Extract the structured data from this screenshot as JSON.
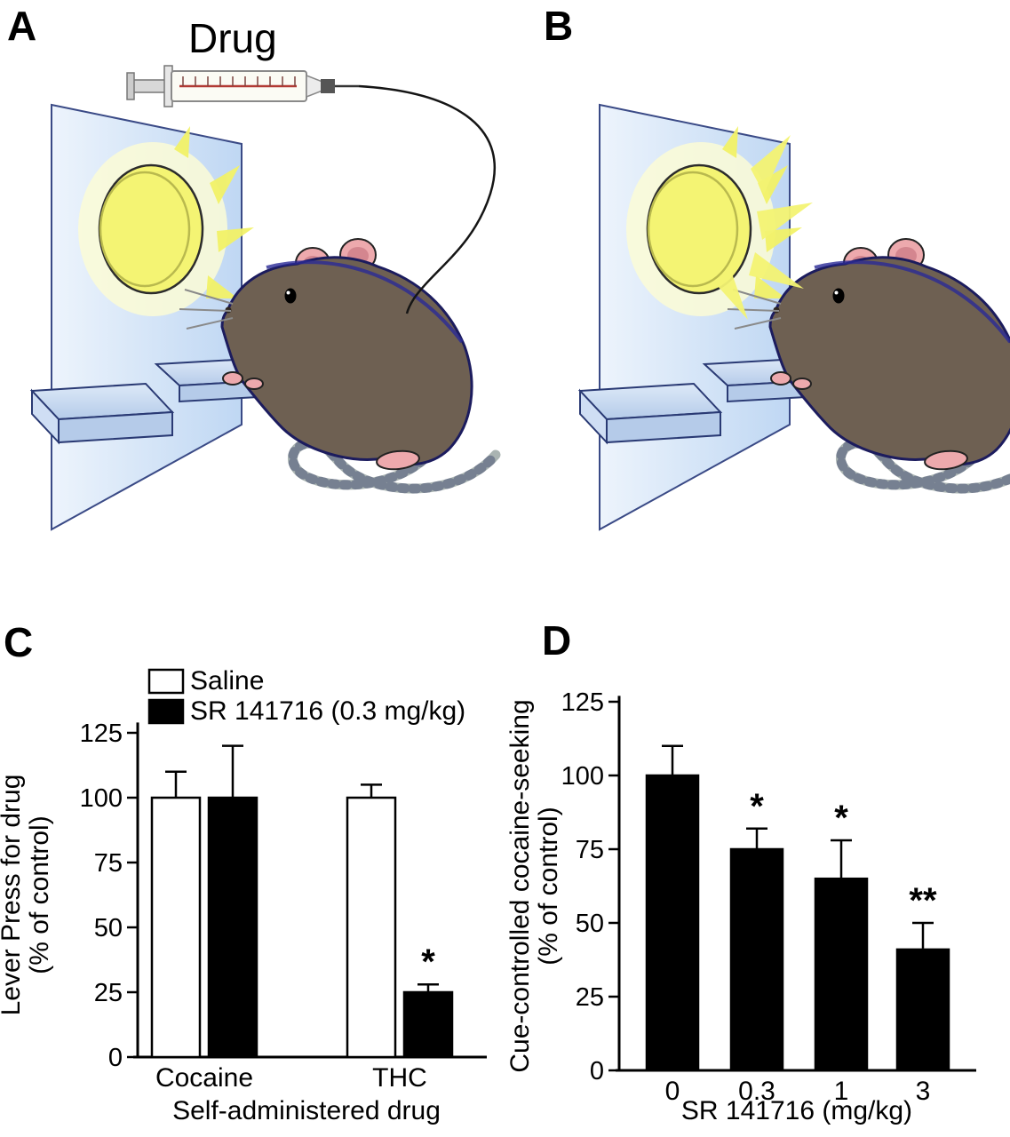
{
  "figure": {
    "panels": {
      "a": "A",
      "b": "B",
      "c": "C",
      "d": "D"
    },
    "drug_label": "Drug"
  },
  "colors": {
    "bar_fill_black": "#000000",
    "bar_fill_white": "#ffffff",
    "cue_light_yellow": "#f4f473",
    "chamber_wall_blue": "#c9dcf5",
    "rat_body_brown": "#6e6052",
    "outline_navy": "#2a2a96"
  },
  "chart_data": [
    {
      "id": "panel-C",
      "type": "bar",
      "title": "",
      "categories": [
        "Cocaine",
        "THC"
      ],
      "series": [
        {
          "name": "Saline",
          "fill": "white",
          "values": [
            100,
            100
          ],
          "errors": [
            10,
            5
          ]
        },
        {
          "name": "SR 141716 (0.3 mg/kg)",
          "fill": "black",
          "values": [
            100,
            25
          ],
          "errors": [
            20,
            3
          ]
        }
      ],
      "annotations": [
        {
          "cat": 1,
          "series": 1,
          "text": "*"
        }
      ],
      "ylabel": [
        "Lever Press for drug",
        "(% of control)"
      ],
      "xlabel": "Self-administered drug",
      "yticks": [
        0,
        25,
        50,
        75,
        100,
        125
      ],
      "ylim": [
        0,
        135
      ],
      "legend_position": "top-left",
      "grid": false
    },
    {
      "id": "panel-D",
      "type": "bar",
      "title": "",
      "categories": [
        "0",
        "0.3",
        "1",
        "3"
      ],
      "series": [
        {
          "name": "SR 141716",
          "fill": "black",
          "values": [
            100,
            75,
            65,
            41
          ],
          "errors": [
            10,
            7,
            13,
            9
          ]
        }
      ],
      "annotations": [
        {
          "cat": 1,
          "series": 0,
          "text": "*"
        },
        {
          "cat": 2,
          "series": 0,
          "text": "*"
        },
        {
          "cat": 3,
          "series": 0,
          "text": "**"
        }
      ],
      "ylabel": [
        "Cue-controlled cocaine-seeking",
        "(% of control)"
      ],
      "xlabel": "SR 141716 (mg/kg)",
      "yticks": [
        0,
        25,
        50,
        75,
        100,
        125
      ],
      "ylim": [
        0,
        135
      ],
      "legend_position": "none",
      "grid": false
    }
  ]
}
